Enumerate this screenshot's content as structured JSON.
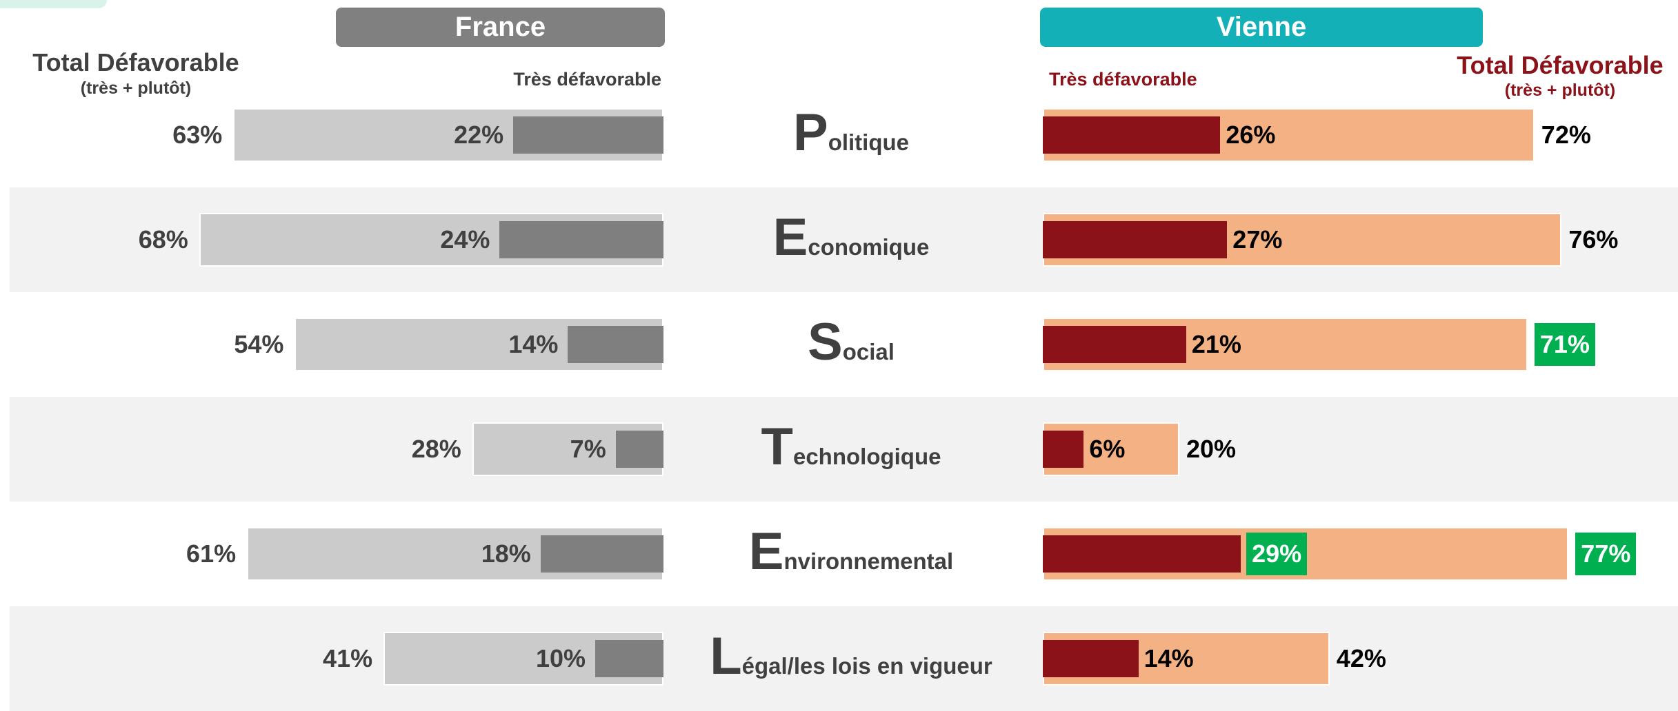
{
  "chart_data": {
    "type": "butterfly",
    "categories": [
      "Politique",
      "Economique",
      "Social",
      "Technologique",
      "Environnemental",
      "Légal/les lois en vigueur"
    ],
    "highlight_color": "#00b050",
    "band_color": "#f2f2f2",
    "panels": [
      {
        "side": "left",
        "title": "France",
        "header_color": "#808080",
        "total_label": "Total Défavorable",
        "total_sublabel": "(très + plutôt)",
        "very_label": "Très défavorable",
        "label_color": "#404040",
        "total": {
          "values": [
            63,
            68,
            54,
            28,
            61,
            41
          ],
          "value_labels": [
            "63%",
            "68%",
            "54%",
            "28%",
            "61%",
            "41%"
          ],
          "color": "#cccbcc",
          "highlight": [
            false,
            false,
            false,
            false,
            false,
            false
          ]
        },
        "very": {
          "values": [
            22,
            24,
            14,
            7,
            18,
            10
          ],
          "value_labels": [
            "22%",
            "24%",
            "14%",
            "7%",
            "18%",
            "10%"
          ],
          "color": "#7f7f7f",
          "highlight": [
            false,
            false,
            false,
            false,
            false,
            false
          ]
        }
      },
      {
        "side": "right",
        "title": "Vienne",
        "header_color": "#13b0b8",
        "total_label": "Total Défavorable",
        "total_sublabel": "(très + plutôt)",
        "very_label": "Très défavorable",
        "label_color": "#8b1219",
        "total": {
          "values": [
            72,
            76,
            71,
            20,
            77,
            42
          ],
          "value_labels": [
            "72%",
            "76%",
            "71%",
            "20%",
            "77%",
            "42%"
          ],
          "color": "#f4b183",
          "highlight": [
            false,
            false,
            true,
            false,
            true,
            false
          ]
        },
        "very": {
          "values": [
            26,
            27,
            21,
            6,
            29,
            14
          ],
          "value_labels": [
            "26%",
            "27%",
            "21%",
            "6%",
            "29%",
            "14%"
          ],
          "color": "#8b1219",
          "highlight": [
            false,
            false,
            false,
            false,
            true,
            false
          ]
        }
      }
    ]
  }
}
